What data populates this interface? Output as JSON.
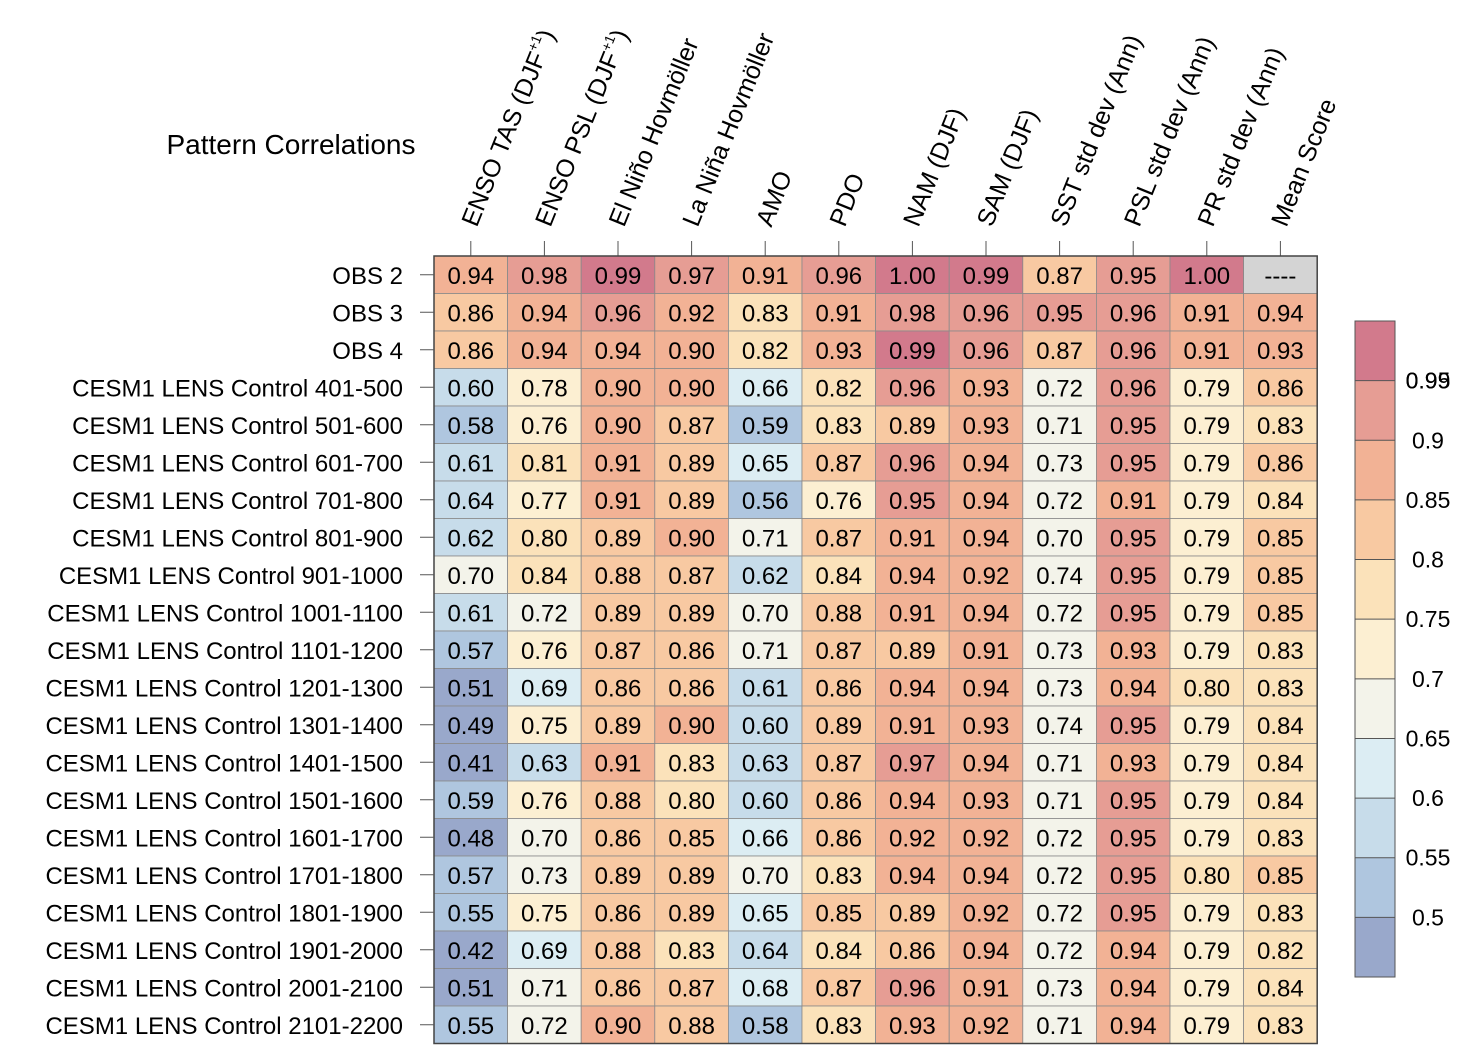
{
  "chart_data": {
    "type": "heatmap",
    "title": "Pattern Correlations",
    "columns": [
      {
        "label": "ENSO TAS (DJF",
        "sup": "+1",
        "tail": ")"
      },
      {
        "label": "ENSO PSL (DJF",
        "sup": "+1",
        "tail": ")"
      },
      {
        "label": "El Niño Hovmöller",
        "sup": "",
        "tail": ""
      },
      {
        "label": "La Niña Hovmöller",
        "sup": "",
        "tail": ""
      },
      {
        "label": "AMO",
        "sup": "",
        "tail": ""
      },
      {
        "label": "PDO",
        "sup": "",
        "tail": ""
      },
      {
        "label": "NAM (DJF)",
        "sup": "",
        "tail": ""
      },
      {
        "label": "SAM (DJF)",
        "sup": "",
        "tail": ""
      },
      {
        "label": "SST std dev (Ann)",
        "sup": "",
        "tail": ""
      },
      {
        "label": "PSL std dev (Ann)",
        "sup": "",
        "tail": ""
      },
      {
        "label": "PR std dev (Ann)",
        "sup": "",
        "tail": ""
      },
      {
        "label": "Mean Score",
        "sup": "",
        "tail": ""
      }
    ],
    "rows": [
      {
        "label": "OBS 2",
        "values": [
          "0.94",
          "0.98",
          "0.99",
          "0.97",
          "0.91",
          "0.96",
          "1.00",
          "0.99",
          "0.87",
          "0.95",
          "1.00",
          "----"
        ]
      },
      {
        "label": "OBS 3",
        "values": [
          "0.86",
          "0.94",
          "0.96",
          "0.92",
          "0.83",
          "0.91",
          "0.98",
          "0.96",
          "0.95",
          "0.96",
          "0.91",
          "0.94"
        ]
      },
      {
        "label": "OBS 4",
        "values": [
          "0.86",
          "0.94",
          "0.94",
          "0.90",
          "0.82",
          "0.93",
          "0.99",
          "0.96",
          "0.87",
          "0.96",
          "0.91",
          "0.93"
        ]
      },
      {
        "label": "CESM1 LENS Control 401-500",
        "values": [
          "0.60",
          "0.78",
          "0.90",
          "0.90",
          "0.66",
          "0.82",
          "0.96",
          "0.93",
          "0.72",
          "0.96",
          "0.79",
          "0.86"
        ]
      },
      {
        "label": "CESM1 LENS Control 501-600",
        "values": [
          "0.58",
          "0.76",
          "0.90",
          "0.87",
          "0.59",
          "0.83",
          "0.89",
          "0.93",
          "0.71",
          "0.95",
          "0.79",
          "0.83"
        ]
      },
      {
        "label": "CESM1 LENS Control 601-700",
        "values": [
          "0.61",
          "0.81",
          "0.91",
          "0.89",
          "0.65",
          "0.87",
          "0.96",
          "0.94",
          "0.73",
          "0.95",
          "0.79",
          "0.86"
        ]
      },
      {
        "label": "CESM1 LENS Control 701-800",
        "values": [
          "0.64",
          "0.77",
          "0.91",
          "0.89",
          "0.56",
          "0.76",
          "0.95",
          "0.94",
          "0.72",
          "0.91",
          "0.79",
          "0.84"
        ]
      },
      {
        "label": "CESM1 LENS Control 801-900",
        "values": [
          "0.62",
          "0.80",
          "0.89",
          "0.90",
          "0.71",
          "0.87",
          "0.91",
          "0.94",
          "0.70",
          "0.95",
          "0.79",
          "0.85"
        ]
      },
      {
        "label": "CESM1 LENS Control 901-1000",
        "values": [
          "0.70",
          "0.84",
          "0.88",
          "0.87",
          "0.62",
          "0.84",
          "0.94",
          "0.92",
          "0.74",
          "0.95",
          "0.79",
          "0.85"
        ]
      },
      {
        "label": "CESM1 LENS Control 1001-1100",
        "values": [
          "0.61",
          "0.72",
          "0.89",
          "0.89",
          "0.70",
          "0.88",
          "0.91",
          "0.94",
          "0.72",
          "0.95",
          "0.79",
          "0.85"
        ]
      },
      {
        "label": "CESM1 LENS Control 1101-1200",
        "values": [
          "0.57",
          "0.76",
          "0.87",
          "0.86",
          "0.71",
          "0.87",
          "0.89",
          "0.91",
          "0.73",
          "0.93",
          "0.79",
          "0.83"
        ]
      },
      {
        "label": "CESM1 LENS Control 1201-1300",
        "values": [
          "0.51",
          "0.69",
          "0.86",
          "0.86",
          "0.61",
          "0.86",
          "0.94",
          "0.94",
          "0.73",
          "0.94",
          "0.80",
          "0.83"
        ]
      },
      {
        "label": "CESM1 LENS Control 1301-1400",
        "values": [
          "0.49",
          "0.75",
          "0.89",
          "0.90",
          "0.60",
          "0.89",
          "0.91",
          "0.93",
          "0.74",
          "0.95",
          "0.79",
          "0.84"
        ]
      },
      {
        "label": "CESM1 LENS Control 1401-1500",
        "values": [
          "0.41",
          "0.63",
          "0.91",
          "0.83",
          "0.63",
          "0.87",
          "0.97",
          "0.94",
          "0.71",
          "0.93",
          "0.79",
          "0.84"
        ]
      },
      {
        "label": "CESM1 LENS Control 1501-1600",
        "values": [
          "0.59",
          "0.76",
          "0.88",
          "0.80",
          "0.60",
          "0.86",
          "0.94",
          "0.93",
          "0.71",
          "0.95",
          "0.79",
          "0.84"
        ]
      },
      {
        "label": "CESM1 LENS Control 1601-1700",
        "values": [
          "0.48",
          "0.70",
          "0.86",
          "0.85",
          "0.66",
          "0.86",
          "0.92",
          "0.92",
          "0.72",
          "0.95",
          "0.79",
          "0.83"
        ]
      },
      {
        "label": "CESM1 LENS Control 1701-1800",
        "values": [
          "0.57",
          "0.73",
          "0.89",
          "0.89",
          "0.70",
          "0.83",
          "0.94",
          "0.94",
          "0.72",
          "0.95",
          "0.80",
          "0.85"
        ]
      },
      {
        "label": "CESM1 LENS Control 1801-1900",
        "values": [
          "0.55",
          "0.75",
          "0.86",
          "0.89",
          "0.65",
          "0.85",
          "0.89",
          "0.92",
          "0.72",
          "0.95",
          "0.79",
          "0.83"
        ]
      },
      {
        "label": "CESM1 LENS Control 1901-2000",
        "values": [
          "0.42",
          "0.69",
          "0.88",
          "0.83",
          "0.64",
          "0.84",
          "0.86",
          "0.94",
          "0.72",
          "0.94",
          "0.79",
          "0.82"
        ]
      },
      {
        "label": "CESM1 LENS Control 2001-2100",
        "values": [
          "0.51",
          "0.71",
          "0.86",
          "0.87",
          "0.68",
          "0.87",
          "0.96",
          "0.91",
          "0.73",
          "0.94",
          "0.79",
          "0.84"
        ]
      },
      {
        "label": "CESM1 LENS Control 2101-2200",
        "values": [
          "0.55",
          "0.72",
          "0.90",
          "0.88",
          "0.58",
          "0.83",
          "0.93",
          "0.92",
          "0.71",
          "0.94",
          "0.79",
          "0.83"
        ]
      }
    ],
    "colorbar": {
      "levels": [
        0.5,
        0.55,
        0.6,
        0.65,
        0.7,
        0.75,
        0.8,
        0.85,
        0.9,
        0.95,
        0.99
      ],
      "tick_labels": [
        "0.5",
        "0.55",
        "0.6",
        "0.65",
        "0.7",
        "0.75",
        "0.8",
        "0.85",
        "0.9",
        "0.95",
        "0.99"
      ],
      "colors": [
        "#99A8CB",
        "#AFC6DF",
        "#C7DCEA",
        "#DCEDF3",
        "#F3F3EA",
        "#FCEFD2",
        "#FBE2BA",
        "#F8C9A2",
        "#F2B295",
        "#E69D94",
        "#D27A8C"
      ],
      "missing_color": "#D4D4D4"
    }
  }
}
